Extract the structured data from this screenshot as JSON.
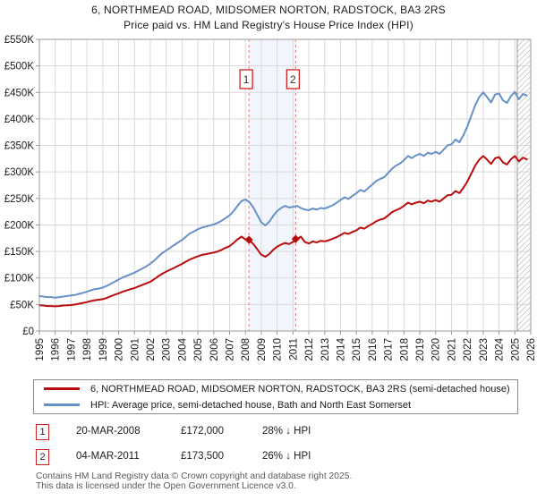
{
  "header": {
    "title": "6, NORTHMEAD ROAD, MIDSOMER NORTON, RADSTOCK, BA3 2RS",
    "subtitle": "Price paid vs. HM Land Registry's House Price Index (HPI)"
  },
  "legend": {
    "series": [
      {
        "label": "6, NORTHMEAD ROAD, MIDSOMER NORTON, RADSTOCK, BA3 2RS (semi-detached house)",
        "color": "#b90c0c"
      },
      {
        "label": "HPI: Average price, semi-detached house, Bath and North East Somerset",
        "color": "#6691c8"
      }
    ]
  },
  "annotations": [
    {
      "num": "1",
      "date": "20-MAR-2008",
      "price": "£172,000",
      "delta": "28% ↓ HPI"
    },
    {
      "num": "2",
      "date": "04-MAR-2011",
      "price": "£173,500",
      "delta": "26% ↓ HPI"
    }
  ],
  "footer": {
    "line1": "Contains HM Land Registry data © Crown copyright and database right 2025.",
    "line2": "This data is licensed under the Open Government Licence v3.0."
  },
  "chart_data": {
    "type": "line",
    "title": "6, NORTHMEAD ROAD, MIDSOMER NORTON, RADSTOCK, BA3 2RS — Price paid vs. HPI",
    "units": "GBP thousands",
    "x_range": [
      1995,
      2026
    ],
    "ylim": [
      0,
      550
    ],
    "grid": true,
    "legend_position": "bottom",
    "y_tick_labels": [
      "£0",
      "£50K",
      "£100K",
      "£150K",
      "£200K",
      "£250K",
      "£300K",
      "£350K",
      "£400K",
      "£450K",
      "£500K",
      "£550K"
    ],
    "y_tick_values": [
      0,
      50,
      100,
      150,
      200,
      250,
      300,
      350,
      400,
      450,
      500,
      550
    ],
    "x_tick_labels": [
      "1995",
      "1996",
      "1997",
      "1998",
      "1999",
      "2000",
      "2001",
      "2002",
      "2003",
      "2004",
      "2005",
      "2006",
      "2007",
      "2008",
      "2009",
      "2010",
      "2011",
      "2012",
      "2013",
      "2014",
      "2015",
      "2016",
      "2017",
      "2018",
      "2019",
      "2020",
      "2021",
      "2022",
      "2023",
      "2024",
      "2025",
      "2026"
    ],
    "x_start": 1995.0,
    "x_step": 0.25,
    "series": [
      {
        "name": "HPI: Average price, semi-detached house, Bath and North East Somerset",
        "color": "#6691c8",
        "values": [
          66,
          65,
          64,
          64,
          63,
          64,
          65,
          66,
          67,
          68,
          70,
          72,
          74,
          77,
          79,
          80,
          82,
          85,
          89,
          93,
          97,
          101,
          104,
          107,
          110,
          114,
          118,
          122,
          127,
          133,
          140,
          147,
          152,
          157,
          162,
          167,
          172,
          178,
          184,
          188,
          192,
          195,
          197,
          199,
          201,
          204,
          208,
          213,
          218,
          226,
          236,
          245,
          248,
          243,
          233,
          219,
          205,
          199,
          206,
          217,
          226,
          232,
          236,
          233,
          234,
          236,
          232,
          229,
          228,
          231,
          229,
          232,
          231,
          234,
          237,
          242,
          247,
          252,
          249,
          255,
          260,
          266,
          263,
          270,
          276,
          283,
          287,
          290,
          298,
          306,
          312,
          316,
          322,
          330,
          326,
          331,
          334,
          330,
          336,
          334,
          338,
          334,
          342,
          350,
          352,
          361,
          356,
          369,
          386,
          406,
          426,
          441,
          450,
          441,
          431,
          446,
          448,
          435,
          430,
          443,
          451,
          437,
          447,
          444
        ]
      },
      {
        "name": "6, NORTHMEAD ROAD, MIDSOMER NORTON, RADSTOCK, BA3 2RS (semi-detached house)",
        "color": "#b90c0c",
        "values": [
          48.5,
          48,
          47,
          47,
          46.5,
          47,
          48,
          48.5,
          49,
          50,
          51.5,
          53,
          54.5,
          56.5,
          58,
          59,
          60,
          62.5,
          65.5,
          68.5,
          71,
          74,
          76.5,
          79,
          81,
          84,
          87,
          90,
          93,
          98,
          103,
          108,
          112,
          115.5,
          119,
          123,
          126.5,
          131,
          135,
          138,
          141,
          143.5,
          145,
          146.5,
          148,
          150,
          153,
          157,
          160,
          166,
          173,
          178,
          173,
          171,
          164,
          154,
          144,
          140,
          145,
          153,
          159,
          163,
          166,
          164,
          168,
          173.5,
          178,
          168,
          165,
          169,
          167,
          170,
          169,
          171,
          174,
          177,
          181,
          185,
          183,
          187,
          190,
          195,
          193,
          198,
          202,
          207,
          210,
          212,
          218,
          224,
          228,
          231,
          236,
          242,
          239,
          242,
          244,
          241,
          246,
          244,
          247,
          244,
          250,
          256,
          257,
          264,
          260,
          270,
          282,
          297,
          312,
          323,
          330,
          323,
          315,
          326,
          328,
          318,
          314,
          324,
          330,
          320,
          327,
          324
        ]
      }
    ],
    "sales": [
      {
        "label": "1",
        "x": 2008.22,
        "value": 172.0
      },
      {
        "label": "2",
        "x": 2011.17,
        "value": 173.5
      }
    ],
    "shaded_span": [
      2008.22,
      2011.17
    ],
    "hatch_span": [
      2025.15,
      2026
    ],
    "colors": {
      "grid": "#d9d9d9",
      "plot_border": "#9a9a9a",
      "sale_dash": "#e98080",
      "shaded_band": "#dbe5f5",
      "hatch_line": "#c9c9c9",
      "marker_box_border": "#cc2222"
    }
  }
}
